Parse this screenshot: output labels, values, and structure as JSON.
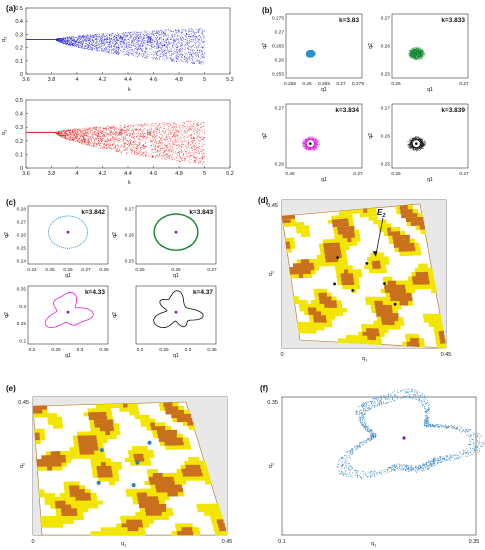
{
  "colors": {
    "blue": "#1a1ad6",
    "red": "#ee1111",
    "cyan": "#2a8fd0",
    "green": "#11862c",
    "magenta": "#e020e0",
    "black": "#111111",
    "purple": "#8a1ca8",
    "yellow": "#f2e600",
    "orange": "#c8701c",
    "grey": "#e8e8e8",
    "steel": "#2e7fc0"
  },
  "chart_data": [
    {
      "panel": "(a)",
      "label": "(a)",
      "type": "scatter",
      "xlabel": "k",
      "ylabel": "q",
      "ylabel_sub": "1",
      "xlim": [
        3.6,
        5.2
      ],
      "ylim": [
        0,
        0.5
      ],
      "xticks": [
        "3.6",
        "3.8",
        "4",
        "4.2",
        "4.4",
        "4.6",
        "4.8",
        "5",
        "5.2"
      ],
      "yticks": [
        "0",
        "0.1",
        "0.2",
        "0.3",
        "0.4",
        "0.5"
      ],
      "series": [
        {
          "color": "blue",
          "x_start": 3.6,
          "x_end": 5.0,
          "fixed_value": 0.262,
          "branch_from": 3.83,
          "spread_at_end": [
            0.07,
            0.35
          ]
        },
        {
          "color": "red",
          "x_start": 3.6,
          "x_end": 5.0,
          "fixed_value": 0.262,
          "branch_from": 3.83,
          "spread_at_end": [
            0.02,
            0.35
          ]
        }
      ]
    },
    {
      "panel": "(b)",
      "label": "(b)",
      "type": "scatter",
      "xlabel": "q",
      "xlabel_sub": "1",
      "ylabel": "q",
      "ylabel_sub": "2",
      "subplots": [
        {
          "k_label": "k=3.83",
          "color": "cyan",
          "xticks": [
            "0.255",
            "0.26",
            "0.265",
            "0.27",
            "0.275"
          ],
          "yticks": [
            "0.255",
            "0.26",
            "0.265",
            "0.27",
            "0.275"
          ],
          "center": [
            0.261,
            0.261
          ]
        },
        {
          "k_label": "k=3.833",
          "color": "green",
          "xticks": [
            "0.26",
            "0.27"
          ],
          "yticks": [
            "0.25",
            "0.26",
            "0.27"
          ],
          "center": [
            0.262,
            0.262
          ]
        },
        {
          "k_label": "k=3.834",
          "color": "magenta",
          "xticks": [
            "0.26",
            "0.27"
          ],
          "yticks": [
            "0.26",
            "0.27"
          ],
          "center": [
            0.262,
            0.262
          ]
        },
        {
          "k_label": "k=3.839",
          "color": "black",
          "xticks": [
            "0.26",
            "0.27"
          ],
          "yticks": [
            "0.25",
            "0.26",
            "0.27"
          ],
          "center": [
            0.262,
            0.262
          ]
        }
      ]
    },
    {
      "panel": "(c)",
      "label": "(c)",
      "type": "line",
      "xlabel": "q",
      "xlabel_sub": "1",
      "ylabel": "q",
      "ylabel_sub": "2",
      "subplots": [
        {
          "k_label": "k=3.842",
          "color": "cyan",
          "xticks": [
            "0.24",
            "0.25",
            "0.26",
            "0.27",
            "0.28"
          ],
          "yticks": [
            "0.24",
            "0.25",
            "0.26",
            "0.27",
            "0.28"
          ]
        },
        {
          "k_label": "k=3.843",
          "color": "green",
          "xticks": [
            "0.25",
            "0.26",
            "0.27"
          ],
          "yticks": [
            "0.25",
            "0.26",
            "0.27"
          ]
        },
        {
          "k_label": "k=4.33",
          "color": "magenta",
          "xticks": [
            "0.2",
            "0.25",
            "0.3",
            "0.35"
          ],
          "yticks": [
            "0.2",
            "0.25",
            "0.3",
            "0.35"
          ]
        },
        {
          "k_label": "k=4.37",
          "color": "black",
          "xticks": [
            "0.2",
            "0.25",
            "0.3",
            "0.35"
          ],
          "yticks": []
        }
      ]
    },
    {
      "panel": "(d)",
      "label": "(d)",
      "type": "heatmap",
      "xlabel": "q",
      "xlabel_sub": "1",
      "ylabel": "q",
      "ylabel_sub": "2",
      "xticks": [
        "0",
        "0.45"
      ],
      "yticks": [
        "0",
        "0.45"
      ],
      "annotation": "E",
      "annotation_sub": "2"
    },
    {
      "panel": "(e)",
      "label": "(e)",
      "type": "heatmap",
      "xlabel": "q",
      "xlabel_sub": "1",
      "ylabel": "q",
      "ylabel_sub": "2",
      "xticks": [
        "0",
        "0.45"
      ],
      "yticks": [
        "0",
        "0.45"
      ]
    },
    {
      "panel": "(f)",
      "label": "(f)",
      "type": "scatter",
      "xlabel": "q",
      "xlabel_sub": "1",
      "ylabel": "q",
      "ylabel_sub": "2",
      "xticks": [
        "0.1",
        "0.35"
      ],
      "yticks": [
        "0.1",
        "0.35"
      ],
      "center": [
        0.26,
        0.26
      ]
    }
  ]
}
